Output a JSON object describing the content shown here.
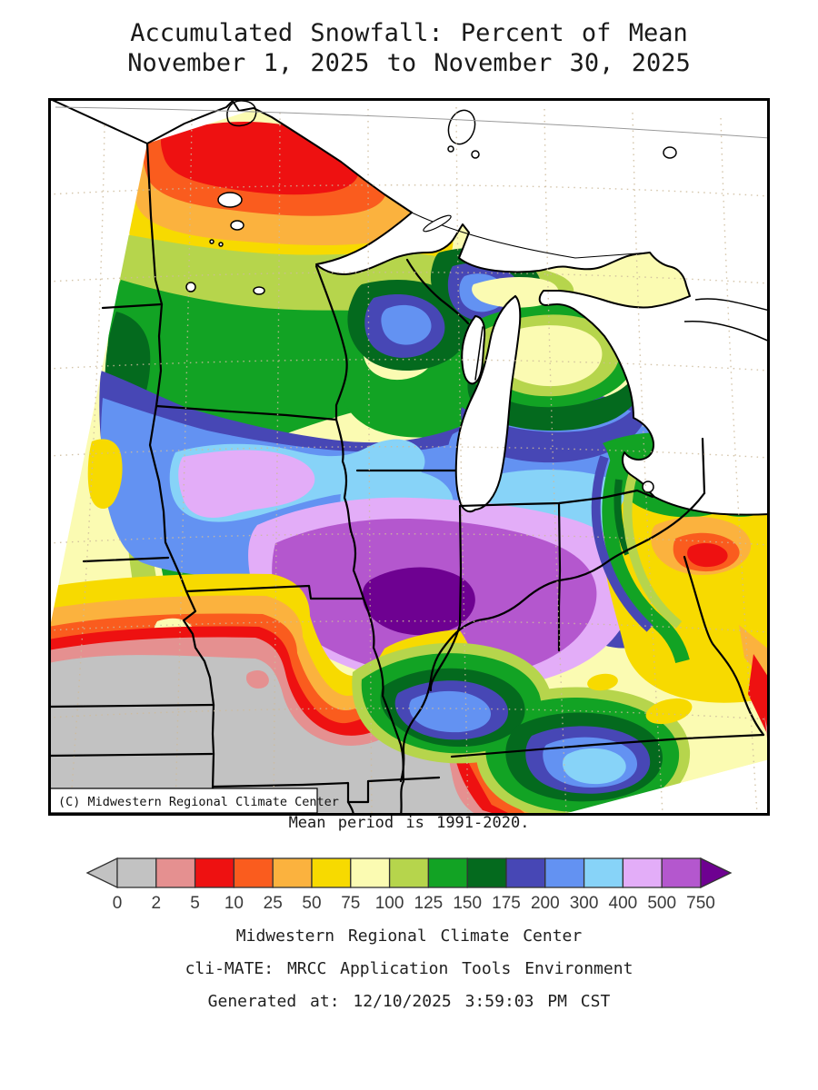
{
  "title": {
    "line1": "Accumulated Snowfall: Percent of Mean",
    "line2": "November 1, 2025 to November 30, 2025"
  },
  "map": {
    "copyright": "(C) Midwestern Regional Climate Center",
    "caption": "Mean period is 1991-2020.",
    "region": "Midwestern United States",
    "features": [
      "state borders",
      "Great Lakes",
      "lat-lon dotted graticule"
    ]
  },
  "legend": {
    "labels": [
      "0",
      "2",
      "5",
      "10",
      "25",
      "50",
      "75",
      "100",
      "125",
      "150",
      "175",
      "200",
      "300",
      "400",
      "500",
      "750"
    ],
    "colors": [
      "#c2c2c2",
      "#e59090",
      "#ee1111",
      "#fa5c1e",
      "#fbb23e",
      "#f7da00",
      "#fbfbb2",
      "#b6d54c",
      "#12a324",
      "#046a1e",
      "#4747b5",
      "#6392f2",
      "#87d3f8",
      "#e3adf8",
      "#b457ce"
    ],
    "left_arrow_color": "#c2c2c2",
    "right_arrow_color": "#6e0191",
    "units": "percent of mean snowfall"
  },
  "palette": {
    "gray": "#c2c2c2",
    "salmon": "#e59090",
    "red": "#ee1111",
    "orange_red": "#fa5c1e",
    "orange": "#fbb23e",
    "yellow": "#f7da00",
    "pale_yellow": "#fbfbb2",
    "yellow_green": "#b6d54c",
    "green": "#12a324",
    "dark_green": "#046a1e",
    "indigo": "#4747b5",
    "blue": "#6392f2",
    "light_blue": "#87d3f8",
    "lavender": "#e3adf8",
    "purple": "#b457ce",
    "dark_purple": "#6e0191",
    "border": "#000000",
    "graticule": "#cdbb9c"
  },
  "footer": {
    "line1": "Midwestern Regional Climate Center",
    "line2": "cli-MATE: MRCC Application Tools Environment",
    "line3": "Generated at: 12/10/2025 3:59:03 PM CST"
  }
}
